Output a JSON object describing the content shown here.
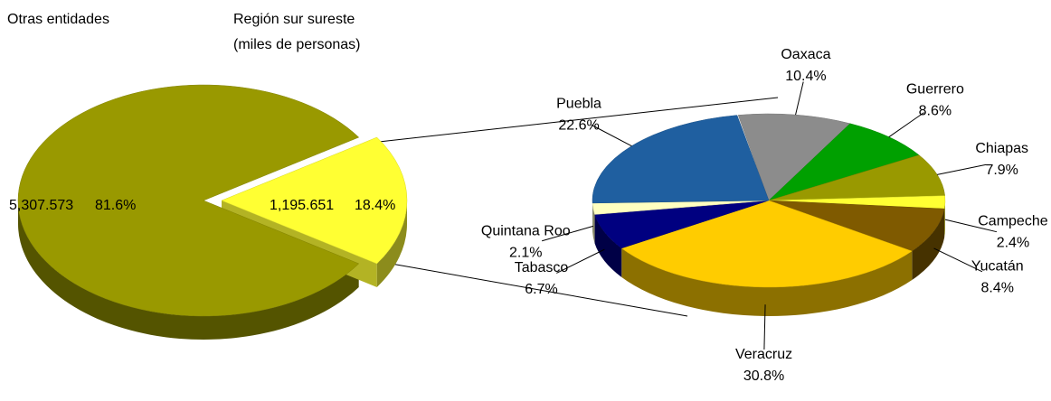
{
  "chart_data": [
    {
      "type": "pie",
      "categories": [
        "Otras entidades",
        "Región sur sureste"
      ],
      "subtitle": "(miles de personas)",
      "values": [
        81.6,
        18.4
      ],
      "value_labels": [
        "81.6%",
        "18.4%"
      ],
      "amounts": [
        5307.573,
        1195.651
      ],
      "amount_labels": [
        "5,307.573",
        "1,195.651"
      ],
      "colors": [
        "#999900",
        "#ffff33"
      ]
    },
    {
      "type": "pie",
      "categories": [
        "Oaxaca",
        "Guerrero",
        "Chiapas",
        "Campeche",
        "Yucatán",
        "Veracruz",
        "Tabasco",
        "Quintana Roo",
        "Puebla"
      ],
      "values": [
        10.4,
        8.6,
        7.9,
        2.4,
        8.4,
        30.8,
        6.7,
        2.1,
        22.6
      ],
      "value_labels": [
        "10.4%",
        "8.6%",
        "7.9%",
        "2.4%",
        "8.4%",
        "30.8%",
        "6.7%",
        "2.1%",
        "22.6%"
      ],
      "colors": [
        "#8c8c8c",
        "#00a000",
        "#999900",
        "#ffff33",
        "#7f5a00",
        "#ffcc00",
        "#000080",
        "#ffffc0",
        "#1f5fa0"
      ]
    }
  ]
}
